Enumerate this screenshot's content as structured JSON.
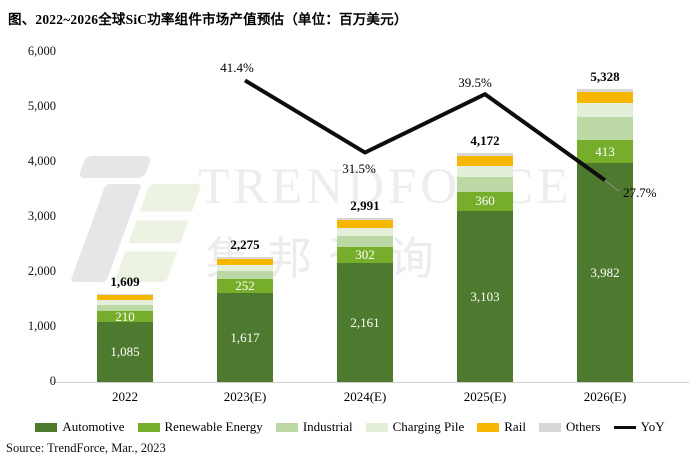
{
  "title": "图、2022~2026全球SiC功率组件市场产值预估（单位：百万美元）",
  "source": "Source: TrendForce, Mar., 2023",
  "watermark": {
    "brand_en": "TRENDFORCE",
    "brand_cn": "集邦咨询"
  },
  "chart_data": {
    "type": "bar",
    "subtype": "stacked-bars-with-yoy-line",
    "categories": [
      "2022",
      "2023(E)",
      "2024(E)",
      "2025(E)",
      "2026(E)"
    ],
    "totals": [
      1609,
      2275,
      2991,
      4172,
      5328
    ],
    "series": [
      {
        "name": "Automotive",
        "color": "#4d7a2e",
        "values": [
          1085,
          1617,
          2161,
          3103,
          3982
        ],
        "labels_visible": true,
        "estimated": false
      },
      {
        "name": "Renewable Energy",
        "color": "#76ad2b",
        "values": [
          210,
          252,
          302,
          360,
          413
        ],
        "labels_visible": true,
        "estimated": false
      },
      {
        "name": "Industrial",
        "color": "#bcd8a4",
        "values": [
          110,
          150,
          190,
          270,
          424
        ],
        "labels_visible": false,
        "estimated": true
      },
      {
        "name": "Charging Pile",
        "color": "#e4efda",
        "values": [
          82,
          110,
          145,
          190,
          254
        ],
        "labels_visible": false,
        "estimated": true
      },
      {
        "name": "Rail",
        "color": "#f7b600",
        "values": [
          95,
          115,
          150,
          195,
          198
        ],
        "labels_visible": false,
        "estimated": true
      },
      {
        "name": "Others",
        "color": "#d7d7d7",
        "values": [
          27,
          31,
          43,
          54,
          57
        ],
        "labels_visible": false,
        "estimated": true
      }
    ],
    "yoy": {
      "name": "YoY",
      "color": "#0d0d0d",
      "x": [
        "2023(E)",
        "2024(E)",
        "2025(E)",
        "2026(E)"
      ],
      "values": [
        41.4,
        31.5,
        39.5,
        27.7
      ],
      "labels": [
        "41.4%",
        "31.5%",
        "39.5%",
        "27.7%"
      ]
    },
    "ylim": [
      0,
      6000
    ],
    "y_ticks": [
      "0",
      "1,000",
      "2,000",
      "3,000",
      "4,000",
      "5,000",
      "6,000"
    ],
    "y2lim": [
      0,
      45.3
    ],
    "grid": false,
    "legend_position": "bottom"
  }
}
